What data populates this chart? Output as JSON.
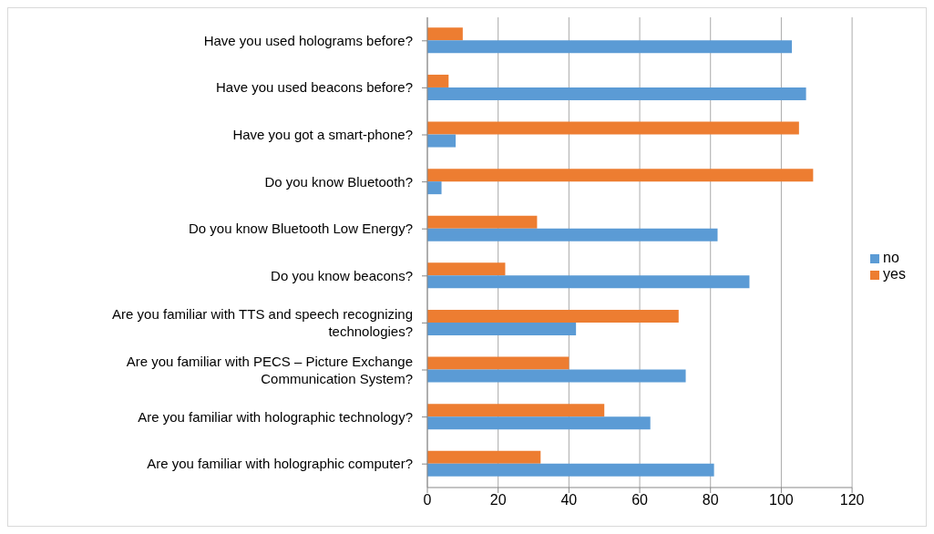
{
  "chart_data": {
    "type": "bar",
    "orientation": "horizontal",
    "categories": [
      "Have you used holograms before?",
      "Have you used beacons before?",
      "Have you got a smart-phone?",
      "Do you know Bluetooth?",
      "Do you know Bluetooth Low Energy?",
      "Do you know beacons?",
      "Are you familiar with TTS and speech recognizing technologies?",
      "Are you familiar with PECS – Picture Exchange Communication System?",
      "Are you familiar with holographic technology?",
      "Are you familiar with holographic computer?"
    ],
    "series": [
      {
        "name": "yes",
        "color": "#ed7d31",
        "values": [
          10,
          6,
          105,
          109,
          31,
          22,
          71,
          40,
          50,
          32
        ]
      },
      {
        "name": "no",
        "color": "#5b9bd5",
        "values": [
          103,
          107,
          8,
          4,
          82,
          91,
          42,
          73,
          63,
          81
        ]
      }
    ],
    "xlim": [
      0,
      120
    ],
    "xticks": [
      0,
      20,
      40,
      60,
      80,
      100,
      120
    ],
    "grid": "x",
    "legend": "right"
  }
}
